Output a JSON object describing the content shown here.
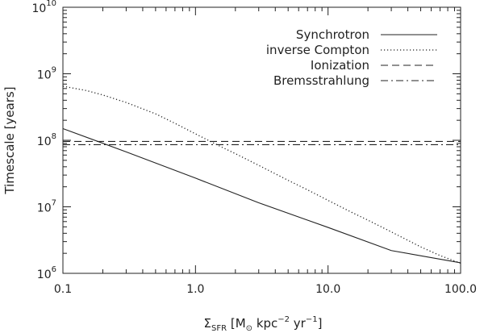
{
  "chart_data": {
    "type": "line",
    "title": "",
    "xlabel": {
      "symbol": "Σ",
      "subscript": "SFR",
      "units_open": " [M",
      "sun": "⊙",
      "units_mid": " kpc",
      "exp1": "−2",
      "units_yr": " yr",
      "exp2": "−1",
      "units_close": "]"
    },
    "ylabel": "Timescale [years]",
    "x_scale": "log",
    "y_scale": "log",
    "xlim": [
      0.1,
      100.0
    ],
    "ylim": [
      1000000,
      10000000000
    ],
    "x_ticks": [
      {
        "value": 0.1,
        "label": "0.1"
      },
      {
        "value": 1.0,
        "label": "1.0"
      },
      {
        "value": 10.0,
        "label": "10.0"
      },
      {
        "value": 100.0,
        "label": "100.0"
      }
    ],
    "y_ticks": [
      {
        "value": 1000000,
        "base": "10",
        "exp": "6"
      },
      {
        "value": 10000000,
        "base": "10",
        "exp": "7"
      },
      {
        "value": 100000000,
        "base": "10",
        "exp": "8"
      },
      {
        "value": 1000000000,
        "base": "10",
        "exp": "9"
      },
      {
        "value": 10000000000,
        "base": "10",
        "exp": "10"
      }
    ],
    "grid": false,
    "legend_position": "top-right",
    "series": [
      {
        "name": "Synchrotron",
        "style": "solid",
        "x": [
          0.1,
          0.3,
          1.0,
          3.0,
          10.0,
          30.0,
          100.0
        ],
        "y": [
          150000000,
          67000000,
          27000000,
          11500000,
          4900000,
          2200000,
          1440000
        ]
      },
      {
        "name": "inverse Compton",
        "style": "dotted",
        "x": [
          0.1,
          0.15,
          0.2,
          0.3,
          0.5,
          0.7,
          1.0,
          1.5,
          2.0,
          3.0,
          5.0,
          7.0,
          10.0,
          15.0,
          20.0,
          30.0,
          50.0,
          70.0,
          100.0
        ],
        "y": [
          650000000,
          560000000,
          480000000,
          370000000,
          250000000,
          180000000,
          125000000,
          83000000,
          63000000,
          42000000,
          25000000,
          18000000,
          12500000,
          8300000,
          6300000,
          4200000,
          2500000,
          1850000,
          1420000
        ]
      },
      {
        "name": "Ionization",
        "style": "dashed",
        "x": [
          0.1,
          100.0
        ],
        "y": [
          96000000,
          96000000
        ]
      },
      {
        "name": "Bremsstrahlung",
        "style": "dash-dot",
        "x": [
          0.1,
          100.0
        ],
        "y": [
          86000000,
          86000000
        ]
      }
    ]
  }
}
